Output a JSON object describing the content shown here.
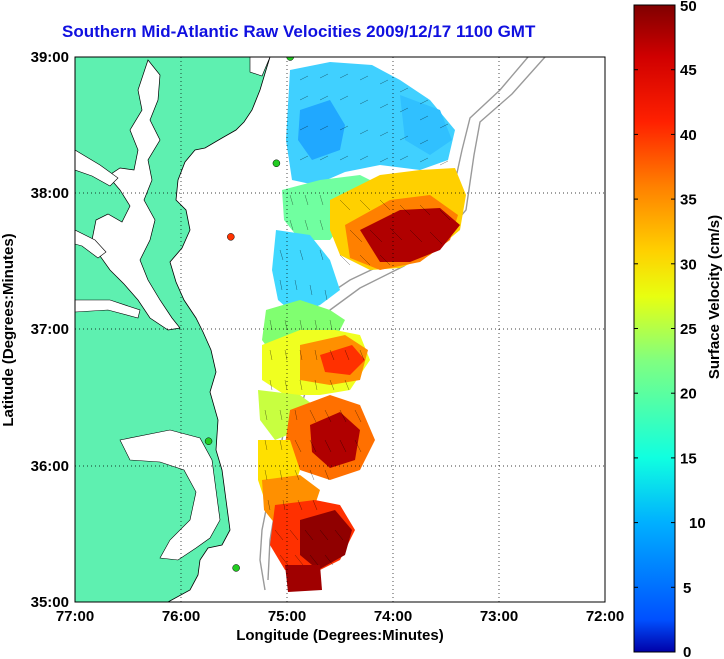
{
  "title": "Southern Mid-Atlantic Raw Velocities 2009/12/17 1100 GMT",
  "map": {
    "x_axis_label": "Longitude (Degrees:Minutes)",
    "y_axis_label": "Latitude (Degrees:Minutes)",
    "x_ticks": [
      "77:00",
      "76:00",
      "75:00",
      "74:00",
      "73:00",
      "72:00"
    ],
    "y_ticks": [
      "39:00",
      "38:00",
      "37:00",
      "36:00",
      "35:00"
    ],
    "lon_range": [
      -77,
      -72
    ],
    "lat_range": [
      35,
      39
    ],
    "land_color": "#5ef0b0",
    "grid": "dotted"
  },
  "colorbar": {
    "label": "Surface Velocity (cm/s)",
    "ticks": [
      "50",
      "45",
      "40",
      "35",
      "30",
      "25",
      "20",
      "15",
      "10",
      "5",
      "0"
    ],
    "range": [
      0,
      50
    ],
    "colormap": "jet"
  },
  "stations": [
    {
      "lon": -74.97,
      "lat": 39.0,
      "color": "#22cc22"
    },
    {
      "lon": -75.1,
      "lat": 38.22,
      "color": "#22cc22"
    },
    {
      "lon": -75.53,
      "lat": 37.68,
      "color": "#ff3300"
    },
    {
      "lon": -75.74,
      "lat": 36.18,
      "color": "#22cc22"
    },
    {
      "lon": -75.48,
      "lat": 35.25,
      "color": "#22cc22"
    }
  ]
}
